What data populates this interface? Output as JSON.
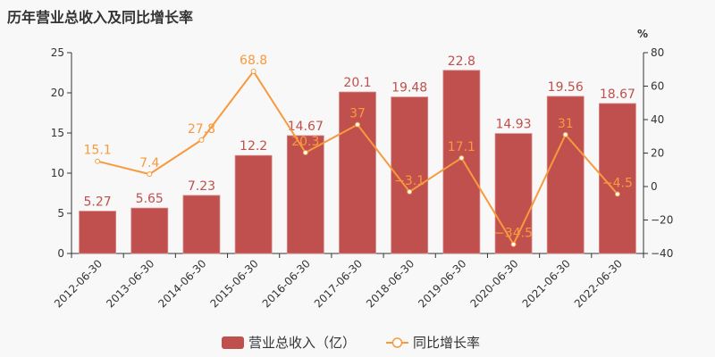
{
  "title": "历年营业总收入及同比增长率",
  "colors": {
    "bar": "#c0504d",
    "line": "#f79a3e",
    "axis": "#333333",
    "text": "#333333",
    "bar_label": "#c0504d",
    "line_label": "#f79a3e"
  },
  "legend": {
    "bar_label": "营业总收入（亿）",
    "line_label": "同比增长率"
  },
  "right_axis_unit": "%",
  "chart_data": {
    "type": "bar",
    "title": "历年营业总收入及同比增长率",
    "categories": [
      "2012-06-30",
      "2013-06-30",
      "2014-06-30",
      "2015-06-30",
      "2016-06-30",
      "2017-06-30",
      "2018-06-30",
      "2019-06-30",
      "2020-06-30",
      "2021-06-30",
      "2022-06-30"
    ],
    "series": [
      {
        "name": "营业总收入（亿）",
        "type": "bar",
        "axis": "left",
        "values": [
          5.27,
          5.65,
          7.23,
          12.2,
          14.67,
          20.1,
          19.48,
          22.8,
          14.93,
          19.56,
          18.67
        ]
      },
      {
        "name": "同比增长率",
        "type": "line",
        "axis": "right",
        "values": [
          15.1,
          7.4,
          27.8,
          68.8,
          20.3,
          37,
          -3.1,
          17.1,
          -34.5,
          31,
          -4.5
        ]
      }
    ],
    "left_axis": {
      "ylim": [
        0,
        25
      ],
      "ticks": [
        0,
        5,
        10,
        15,
        20,
        25
      ]
    },
    "right_axis": {
      "ylim": [
        -40,
        80
      ],
      "ticks": [
        -40,
        -20,
        0,
        20,
        40,
        60,
        80
      ],
      "unit": "%"
    },
    "xlabel": "",
    "ylabel": "",
    "grid": false,
    "legend_position": "bottom"
  }
}
